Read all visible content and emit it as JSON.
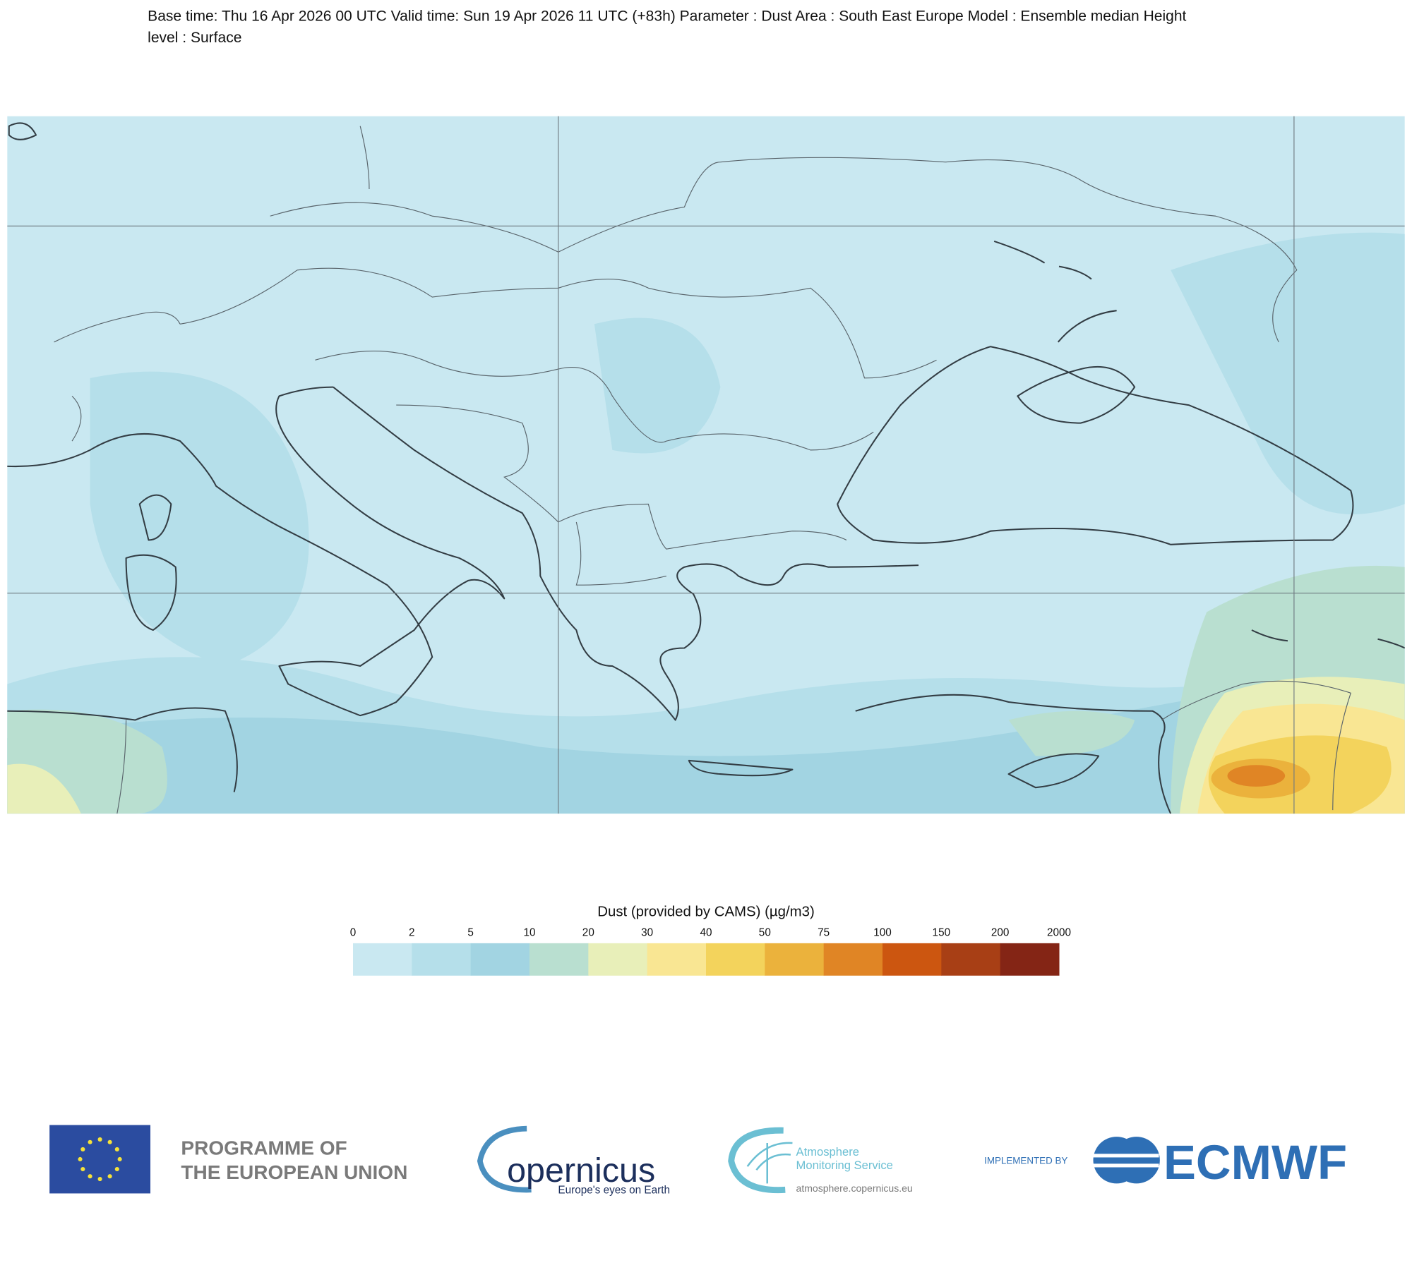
{
  "header": {
    "title_lines": [
      "Base time: Thu 16 Apr 2026 00 UTC Valid time: Sun 19 Apr 2026 11 UTC (+83h) Parameter : Dust Area : South East Europe Model : Ensemble median Height",
      "level : Surface"
    ]
  },
  "legend": {
    "title": "Dust (provided by CAMS) (µg/m3)",
    "bounds": [
      0,
      2,
      5,
      10,
      20,
      30,
      40,
      50,
      75,
      100,
      150,
      200,
      2000
    ],
    "colors": [
      "#c9e8f1",
      "#b5dfea",
      "#a2d4e2",
      "#b9dfd0",
      "#e8efb9",
      "#f9e693",
      "#f3d35c",
      "#ebb23c",
      "#e08525",
      "#cc5610",
      "#a83f15",
      "#842515"
    ]
  },
  "footer": {
    "eu": [
      "PROGRAMME OF",
      "THE EUROPEAN UNION"
    ],
    "copernicus": "opernicus",
    "copernicus_tagline": "Europe's eyes on Earth",
    "cams": [
      "Atmosphere",
      "Monitoring Service"
    ],
    "cams_url": "atmosphere.copernicus.eu",
    "implemented_by": "IMPLEMENTED BY",
    "ecmwf": "ECMWF"
  }
}
